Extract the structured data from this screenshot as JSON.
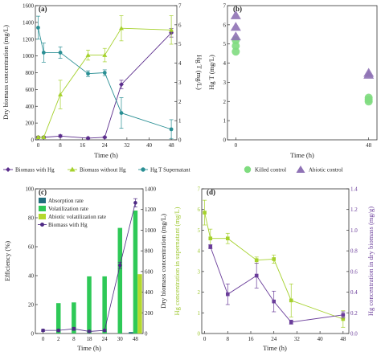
{
  "colors": {
    "purple": "#5b2d8c",
    "lime": "#a5d12c",
    "teal": "#2a8f94",
    "green": "#2ec957",
    "lightgreen": "#7fdc7f",
    "lavender": "#8f72b5",
    "steel": "#216e7d",
    "yellowgreen": "#b4d82d",
    "purpledark": "#4e2a84",
    "lime_axis": "#9bc62a",
    "purple_axis": "#6a3d9a"
  },
  "chart_data": [
    {
      "panel": "(a)",
      "type": "line",
      "xlabel": "Time (h)",
      "ylabel_left": "Dry biomass concentration (mg/L)",
      "ylabel_right": "Hg T (mg/L)",
      "xlim": [
        -1,
        50
      ],
      "xticks": [
        0,
        8,
        16,
        24,
        32,
        40,
        48
      ],
      "ylim_left": [
        0,
        1600
      ],
      "yticks_left": [
        0,
        200,
        400,
        600,
        800,
        1000,
        1200,
        1400,
        1600
      ],
      "ylim_right": [
        0,
        7
      ],
      "yticks_right": [
        0,
        1,
        2,
        3,
        4,
        5,
        6,
        7
      ],
      "x": [
        0,
        2,
        8,
        18,
        24,
        30,
        48
      ],
      "series": [
        {
          "name": "Biomass with Hg",
          "axis": "left",
          "marker": "diamond",
          "color": "#5b2d8c",
          "x": [
            0,
            2,
            8,
            18,
            24,
            30,
            48
          ],
          "values": [
            30,
            30,
            45,
            20,
            30,
            660,
            1275
          ],
          "err": [
            10,
            10,
            15,
            10,
            10,
            50,
            50
          ]
        },
        {
          "name": "Biomass without Hg",
          "axis": "left",
          "marker": "triangle",
          "color": "#a5d12c",
          "x": [
            0,
            2,
            8,
            18,
            24,
            30,
            48
          ],
          "values": [
            30,
            30,
            540,
            1010,
            1010,
            1330,
            1310
          ],
          "err": [
            15,
            15,
            170,
            60,
            80,
            150,
            170
          ]
        },
        {
          "name": "Hg T Supernatant",
          "axis": "right",
          "marker": "circle",
          "color": "#2a8f94",
          "x": [
            0,
            2,
            8,
            18,
            24,
            30,
            48
          ],
          "values": [
            5.85,
            4.55,
            4.55,
            3.45,
            3.5,
            1.4,
            0.55
          ],
          "err": [
            0.6,
            0.5,
            0.3,
            0.15,
            0.15,
            0.8,
            0.5
          ]
        }
      ]
    },
    {
      "panel": "(b)",
      "type": "scatter",
      "xlabel": "Time (h)",
      "ylabel": "Hg T (mg/L)",
      "xlim": [
        -3,
        51
      ],
      "xticks": [
        0,
        48
      ],
      "ylim": [
        0,
        7
      ],
      "yticks": [
        0,
        1,
        2,
        3,
        4,
        5,
        6,
        7
      ],
      "series": [
        {
          "name": "Killed control",
          "marker": "circle",
          "color": "#7fdc7f",
          "x": [
            0,
            0,
            0,
            48,
            48,
            48
          ],
          "values": [
            4.6,
            4.9,
            5.2,
            2.0,
            2.1,
            2.2
          ]
        },
        {
          "name": "Abiotic control",
          "marker": "triangle",
          "color": "#8f72b5",
          "x": [
            0,
            0,
            0,
            48,
            48
          ],
          "values": [
            5.4,
            5.9,
            6.5,
            3.4,
            3.5
          ]
        }
      ]
    },
    {
      "panel": "(c)",
      "type": "bar",
      "xlabel": "Time (h)",
      "ylabel_left": "Efficiency (%)",
      "ylabel_right": "Dry biomass concentration (mg/L)",
      "categories": [
        "0",
        "2",
        "8",
        "18",
        "24",
        "30",
        "48"
      ],
      "ylim_left": [
        0,
        100
      ],
      "yticks_left": [
        0,
        20,
        40,
        60,
        80,
        100
      ],
      "ylim_right": [
        0,
        1400
      ],
      "yticks_right": [
        0,
        200,
        400,
        600,
        800,
        1000,
        1200,
        1400
      ],
      "series": [
        {
          "name": "Absorption rate",
          "color": "#216e7d",
          "values": [
            0,
            0,
            0,
            0,
            0,
            0,
            1
          ]
        },
        {
          "name": "Volatilization rate",
          "color": "#2ec957",
          "values": [
            0,
            21,
            21.5,
            39.5,
            39.5,
            73,
            85
          ]
        },
        {
          "name": "Abiotic volatilization rate",
          "color": "#b4d82d",
          "values": [
            0,
            0,
            0,
            0,
            0,
            0,
            41
          ]
        },
        {
          "name": "Biomass with Hg",
          "type": "line",
          "axis": "right",
          "marker": "circle",
          "color": "#4e2a84",
          "values": [
            30,
            30,
            45,
            20,
            30,
            660,
            1265
          ],
          "err": [
            10,
            10,
            15,
            10,
            10,
            30,
            40
          ]
        }
      ]
    },
    {
      "panel": "(d)",
      "type": "line",
      "xlabel": "Time (h)",
      "ylabel_left": "Hg concentration in supernatant (mg/L)",
      "ylabel_right": "Hg concentration in dry biomass (mg/g)",
      "xlim": [
        -1,
        50
      ],
      "xticks": [
        0,
        8,
        16,
        24,
        32,
        40,
        48
      ],
      "ylim_left": [
        0,
        7
      ],
      "yticks_left": [
        0,
        1,
        2,
        3,
        4,
        5,
        6,
        7
      ],
      "ylim_right": [
        0,
        1.4
      ],
      "yticks_right": [
        0.0,
        0.2,
        0.4,
        0.6,
        0.8,
        1.0,
        1.2,
        1.4
      ],
      "series": [
        {
          "name": "Hg concentration in supernatant",
          "axis": "left",
          "marker": "square",
          "color": "#a5d12c",
          "x": [
            0,
            2,
            8,
            18,
            24,
            30,
            48
          ],
          "values": [
            5.85,
            4.6,
            4.6,
            3.55,
            3.6,
            1.6,
            0.7
          ],
          "err": [
            0.6,
            0.45,
            0.25,
            0.15,
            0.2,
            0.8,
            0.4
          ]
        },
        {
          "name": "Hg concentration in dry biomass",
          "axis": "right",
          "marker": "square",
          "color": "#6a3d9a",
          "x": [
            2,
            8,
            18,
            24,
            30,
            48
          ],
          "values": [
            0.84,
            0.38,
            0.56,
            0.31,
            0.11,
            0.18
          ],
          "err": [
            0.02,
            0.1,
            0.12,
            0.1,
            0.02,
            0.03
          ]
        }
      ]
    }
  ]
}
